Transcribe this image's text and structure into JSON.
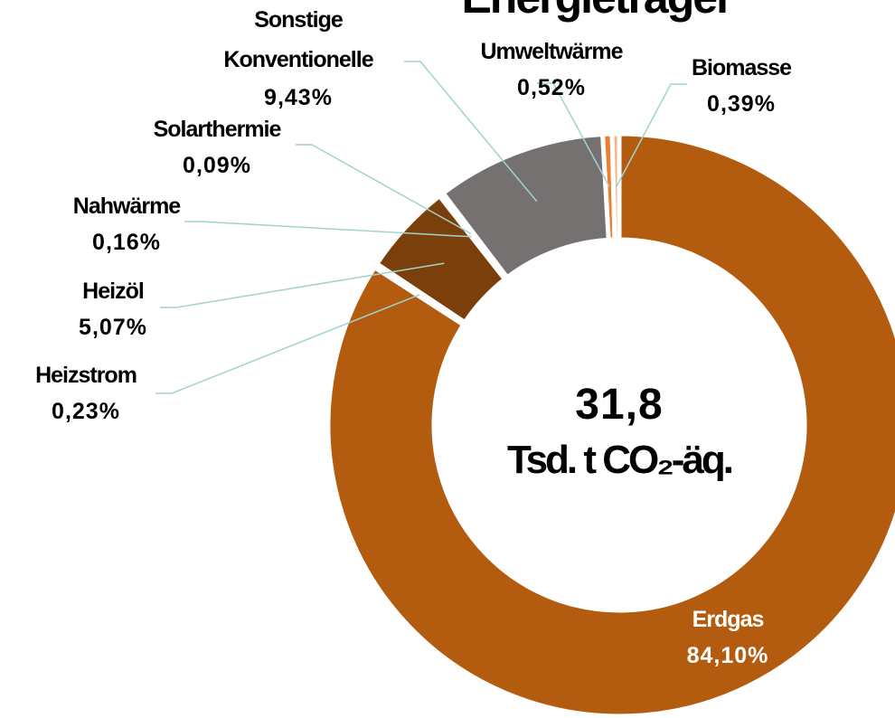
{
  "chart_data": {
    "type": "donut",
    "title": "Energieträger",
    "center_value": "31,8",
    "center_unit": "Tsd. t CO₂-äq.",
    "categories": [
      "Erdgas",
      "Heizstrom",
      "Heizöl",
      "Nahwärme",
      "Solarthermie",
      "Sonstige Konventionelle",
      "Umweltwärme",
      "Biomasse"
    ],
    "values": [
      84.1,
      0.23,
      5.07,
      0.16,
      0.09,
      9.43,
      0.52,
      0.39
    ],
    "value_labels": [
      "84,10%",
      "0,23%",
      "5,07%",
      "0,16%",
      "0,09%",
      "9,43%",
      "0,52%",
      "0,39%"
    ],
    "colors": [
      "#b35c10",
      "#f2e6d9",
      "#7a3f0a",
      "#c55a11",
      "#ffd966",
      "#767171",
      "#ed7d31",
      "#f4b183"
    ]
  }
}
